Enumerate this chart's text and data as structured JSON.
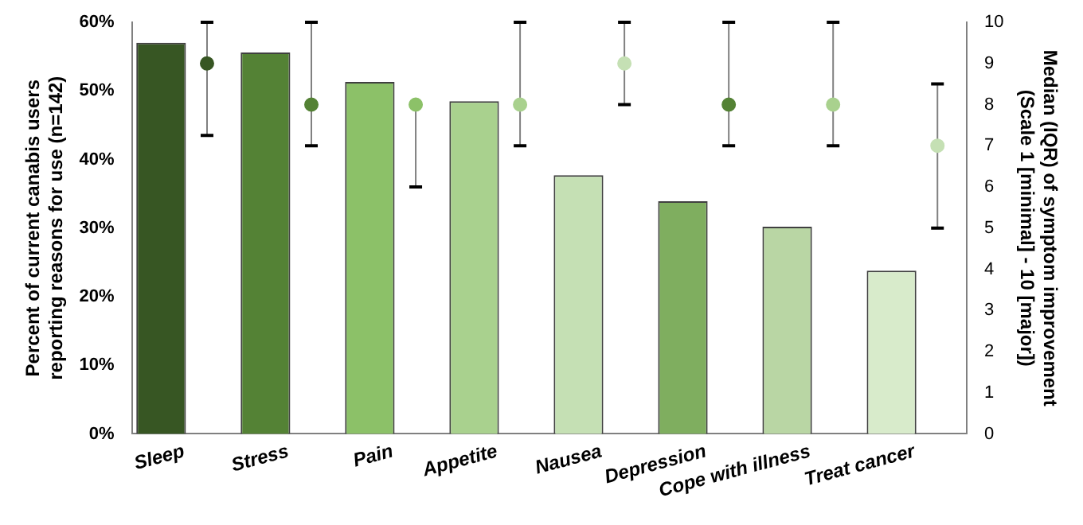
{
  "chart_data": {
    "type": "bar",
    "ylabel": "Percent of current canabis users reporting reasons for use (n=142)",
    "y2label": "Median (IQR) of symptom improvement (Scale 1 [minimal] - 10 [major])",
    "categories": [
      "Sleep",
      "Stress",
      "Pain",
      "Appetite",
      "Nausea",
      "Depression",
      "Cope with illness",
      "Treat cancer"
    ],
    "series": [
      {
        "colors": [
          "#375623",
          "#548235",
          "#8cc168",
          "#a9d18e",
          "#c5e0b4",
          "#7fae5f",
          "#b9d6a4",
          "#d8ebcb"
        ],
        "values": [
          57,
          55.6,
          51.3,
          48.5,
          37.7,
          33.9,
          30.2,
          23.8
        ]
      },
      {
        "type": "scatter",
        "axis": "y2",
        "colors": [
          "#375623",
          "#548235",
          "#8cc168",
          "#a9d18e",
          "#c5e0b4",
          "#548235",
          "#a9d18e",
          "#c5e0b4"
        ],
        "values": [
          9,
          8,
          8,
          8,
          9,
          8,
          8,
          7
        ],
        "errors": [
          [
            7.25,
            10
          ],
          [
            7,
            10
          ],
          [
            6,
            8
          ],
          [
            7,
            10
          ],
          [
            8,
            10
          ],
          [
            7,
            10
          ],
          [
            7,
            10
          ],
          [
            5,
            8.5
          ]
        ]
      }
    ],
    "ylim": [
      0,
      60
    ],
    "yticks": [
      {
        "value": 0,
        "label": "0%"
      },
      {
        "value": 10,
        "label": "10%"
      },
      {
        "value": 20,
        "label": "20%"
      },
      {
        "value": 30,
        "label": "30%"
      },
      {
        "value": 40,
        "label": "40%"
      },
      {
        "value": 50,
        "label": "50%"
      },
      {
        "value": 60,
        "label": "60%"
      }
    ],
    "y2lim": [
      0,
      10
    ],
    "y2ticks": [
      0,
      1,
      2,
      3,
      4,
      5,
      6,
      7,
      8,
      9,
      10
    ],
    "grid": false,
    "legend": false,
    "marker": "circle"
  }
}
